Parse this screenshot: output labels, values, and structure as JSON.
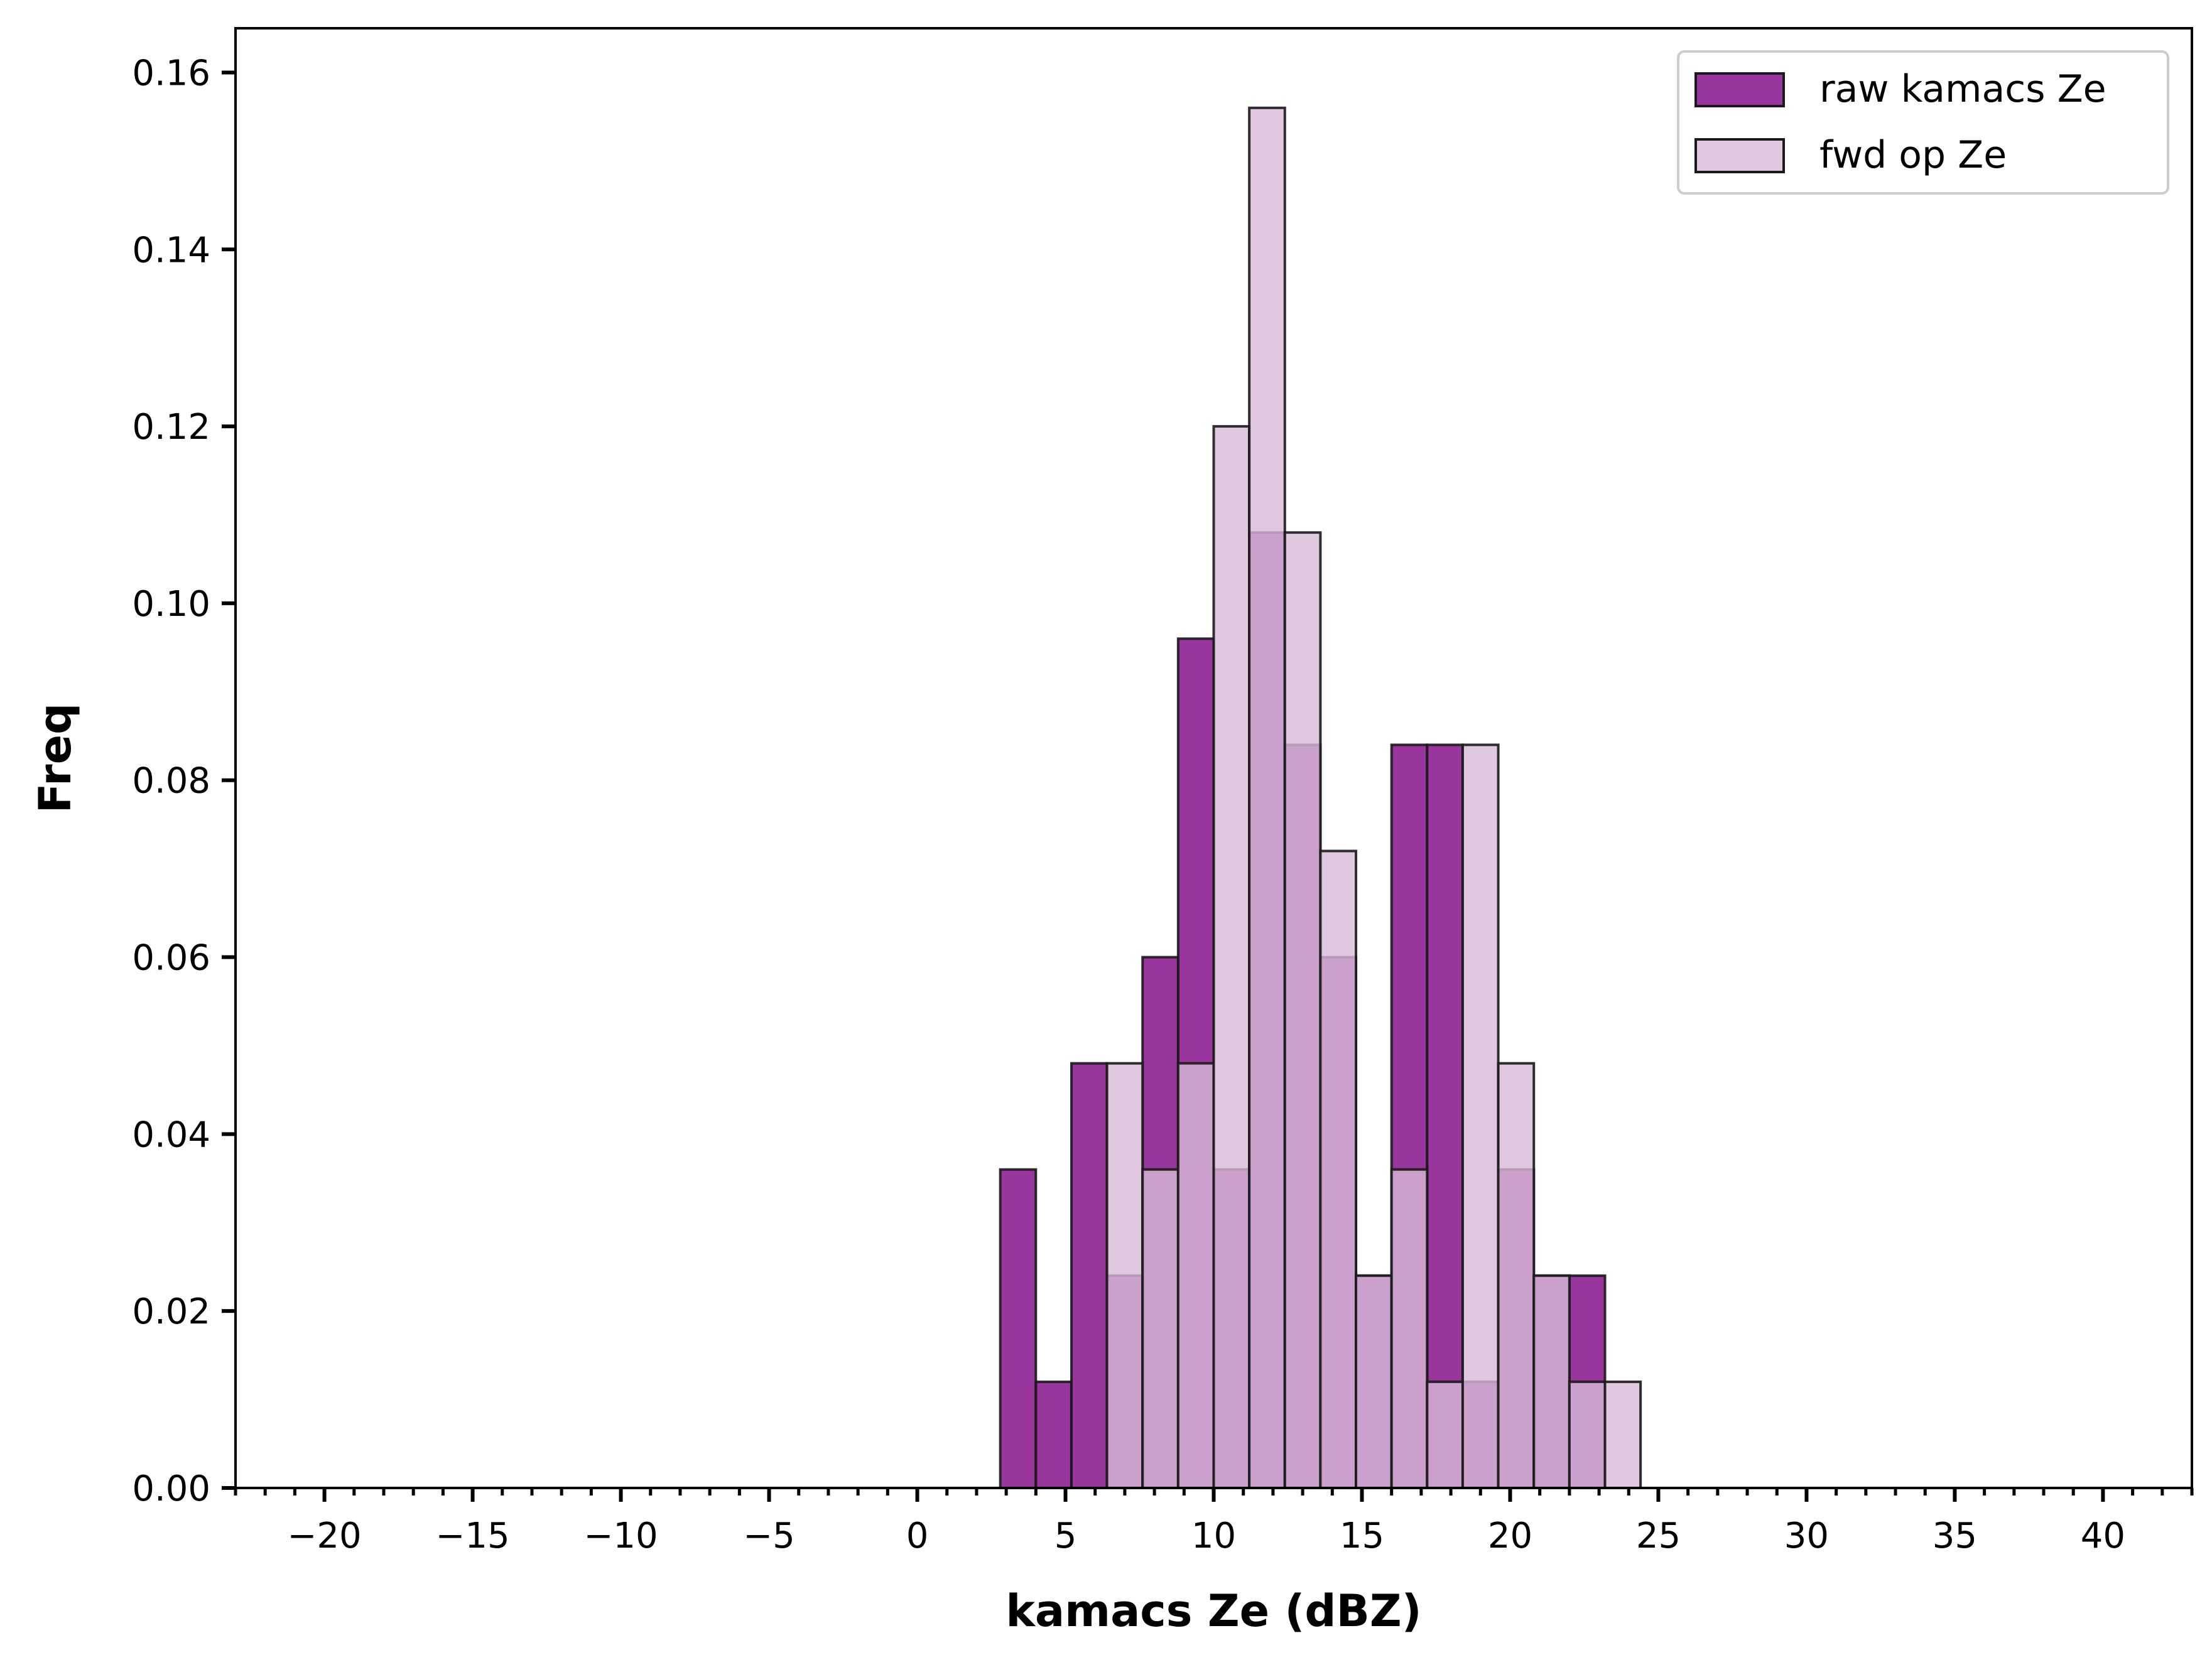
{
  "chart_data": {
    "type": "bar",
    "title": "",
    "xlabel": "kamacs Ze (dBZ)",
    "ylabel": "Freq",
    "xlim": [
      -23,
      43
    ],
    "ylim": [
      0,
      0.165
    ],
    "x_ticks": [
      -20,
      -15,
      -10,
      -5,
      0,
      5,
      10,
      15,
      20,
      25,
      30,
      35,
      40
    ],
    "y_ticks": [
      0.0,
      0.02,
      0.04,
      0.06,
      0.08,
      0.1,
      0.12,
      0.14,
      0.16
    ],
    "y_tick_labels": [
      "0.00",
      "0.02",
      "0.04",
      "0.06",
      "0.08",
      "0.10",
      "0.12",
      "0.14",
      "0.16"
    ],
    "x_minor_tick_step": 1,
    "grid": false,
    "legend_position": "top-right",
    "bin_width": 1.2,
    "series": [
      {
        "name": "raw kamacs Ze",
        "color": "#8b1a8f",
        "opacity": 0.88,
        "bins": [
          [
            2.8,
            0.036
          ],
          [
            4.0,
            0.012
          ],
          [
            5.2,
            0.048
          ],
          [
            6.4,
            0.024
          ],
          [
            7.6,
            0.06
          ],
          [
            8.8,
            0.096
          ],
          [
            10.0,
            0.036
          ],
          [
            11.2,
            0.108
          ],
          [
            12.4,
            0.084
          ],
          [
            13.6,
            0.06
          ],
          [
            14.8,
            0.024
          ],
          [
            16.0,
            0.084
          ],
          [
            17.2,
            0.084
          ],
          [
            18.4,
            0.012
          ],
          [
            19.6,
            0.036
          ],
          [
            20.8,
            0.024
          ],
          [
            22.0,
            0.024
          ]
        ]
      },
      {
        "name": "fwd op Ze",
        "color": "#d8bcd8",
        "opacity": 0.8,
        "bins": [
          [
            6.4,
            0.048
          ],
          [
            7.6,
            0.036
          ],
          [
            8.8,
            0.048
          ],
          [
            10.0,
            0.12
          ],
          [
            11.2,
            0.156
          ],
          [
            12.4,
            0.108
          ],
          [
            13.6,
            0.072
          ],
          [
            14.8,
            0.024
          ],
          [
            16.0,
            0.036
          ],
          [
            17.2,
            0.012
          ],
          [
            18.4,
            0.084
          ],
          [
            19.6,
            0.048
          ],
          [
            20.8,
            0.024
          ],
          [
            22.0,
            0.012
          ],
          [
            23.2,
            0.012
          ]
        ]
      }
    ]
  }
}
